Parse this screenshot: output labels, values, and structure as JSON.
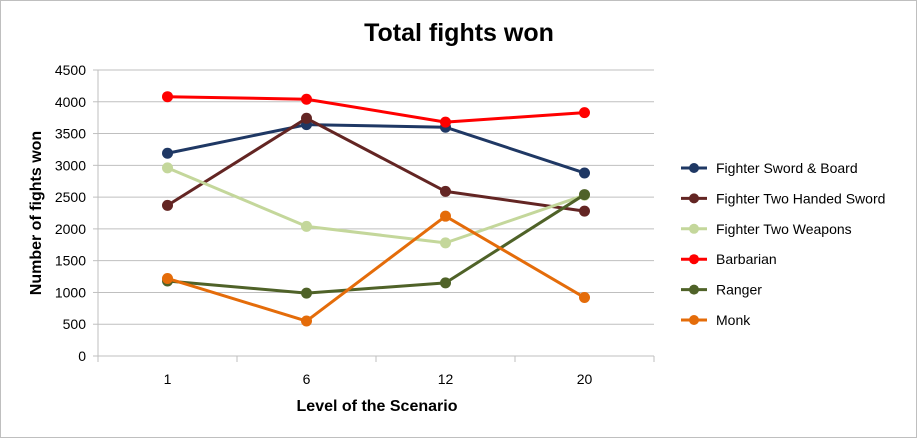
{
  "chart_data": {
    "type": "line",
    "title": "Total fights won",
    "xlabel": "Level of the Scenario",
    "ylabel": "Number of fights won",
    "categories": [
      "1",
      "6",
      "12",
      "20"
    ],
    "ylim": [
      0,
      4500
    ],
    "yticks": [
      0,
      500,
      1000,
      1500,
      2000,
      2500,
      3000,
      3500,
      4000,
      4500
    ],
    "grid": true,
    "legend_position": "right",
    "series": [
      {
        "name": "Fighter Sword & Board",
        "color": "#1f3864",
        "values": [
          3190,
          3640,
          3600,
          2880
        ]
      },
      {
        "name": "Fighter Two Handed Sword",
        "color": "#632523",
        "values": [
          2370,
          3740,
          2590,
          2280
        ]
      },
      {
        "name": "Fighter Two Weapons",
        "color": "#c4d79b",
        "values": [
          2960,
          2040,
          1780,
          2530
        ]
      },
      {
        "name": "Barbarian",
        "color": "#ff0000",
        "values": [
          4080,
          4040,
          3680,
          3830
        ]
      },
      {
        "name": "Ranger",
        "color": "#4f6228",
        "values": [
          1180,
          990,
          1150,
          2540
        ]
      },
      {
        "name": "Monk",
        "color": "#e46c0a",
        "values": [
          1220,
          550,
          2200,
          920
        ]
      }
    ]
  }
}
